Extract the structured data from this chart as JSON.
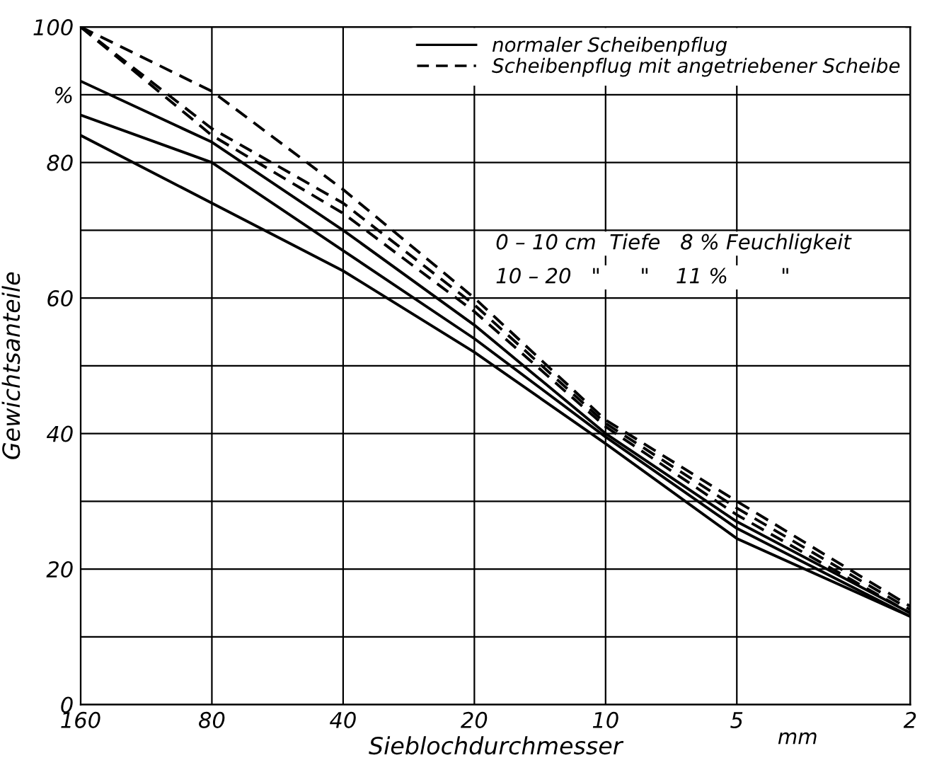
{
  "chart_data": {
    "type": "line",
    "xlabel": "Sieblochdurchmesser",
    "ylabel": "Gewichtsanteile",
    "x": [
      160,
      80,
      40,
      20,
      10,
      5,
      2
    ],
    "log": "x",
    "xlim": [
      160,
      2
    ],
    "xticks": [
      160,
      80,
      40,
      20,
      10,
      5,
      2
    ],
    "ylim": [
      0,
      100
    ],
    "yticks": [
      0,
      {
        "value": 10,
        "label": null
      },
      20,
      {
        "value": 30,
        "label": null
      },
      40,
      {
        "value": 50,
        "label": null
      },
      60,
      {
        "value": 70,
        "label": null
      },
      80,
      {
        "value": 90,
        "label": "%"
      },
      100
    ],
    "grid": true,
    "legend": "top right",
    "series": [
      {
        "name": "normaler Scheibenpflug",
        "color": "#000000",
        "line_style": "solid",
        "values": [
          92,
          83,
          70,
          56,
          40,
          27,
          13.5
        ]
      },
      {
        "color": "#000000",
        "line_style": "solid",
        "values": [
          87,
          80,
          67,
          54,
          39.5,
          26,
          13
        ]
      },
      {
        "color": "#000000",
        "line_style": "solid",
        "values": [
          84,
          74,
          64,
          52,
          38.5,
          24.5,
          13
        ]
      },
      {
        "name": "Scheibenpflug mit angetriebener Scheibe",
        "color": "#000000",
        "line_style": "dashed",
        "values": [
          100,
          90.5,
          76,
          60,
          42,
          30,
          14.5
        ]
      },
      {
        "color": "#000000",
        "line_style": "dashed",
        "values": [
          100,
          85,
          74,
          59,
          41.5,
          29,
          14
        ]
      },
      {
        "color": "#000000",
        "line_style": "dashed",
        "values": [
          100,
          84,
          72.5,
          58,
          41,
          28,
          13.5
        ]
      }
    ],
    "annotations": [
      "0 – 10 cm  Tiefe   8 % Feuchligkeit",
      "10 – 20   \"      \"    11 %        \"",
      "mm"
    ]
  }
}
